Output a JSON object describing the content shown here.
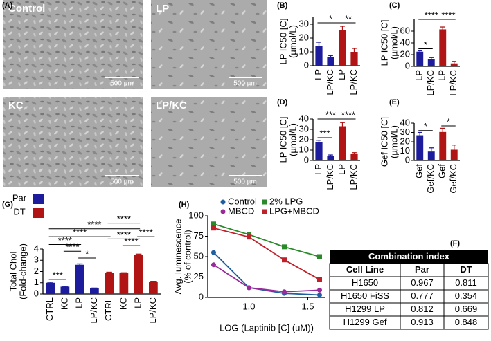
{
  "panel_labels": [
    "(A)",
    "(B)",
    "(C)",
    "(D)",
    "(E)",
    "(G)",
    "(H)",
    "(F)"
  ],
  "micrographs": [
    {
      "label": "Control",
      "scale": "500 µm"
    },
    {
      "label": "LP",
      "scale": "500 µm"
    },
    {
      "label": "KC",
      "scale": "500 µm"
    },
    {
      "label": "LP/KC",
      "scale": "500 µm"
    }
  ],
  "chart_data": [
    {
      "type": "bar",
      "ylabel": [
        "LP IC50 [C]",
        "(µmol/L)"
      ],
      "categories": [
        "LP",
        "LP/KC",
        "LP",
        "LP/KC"
      ],
      "values": [
        14,
        6,
        25.5,
        10
      ],
      "errors": [
        3,
        1.3,
        3,
        2.5
      ],
      "colors": [
        "#1c1c9c",
        "#1c1c9c",
        "#b01414",
        "#b01414"
      ],
      "ylim": [
        0,
        35
      ],
      "yticks": [
        0,
        10,
        20,
        30
      ],
      "annotations": [
        {
          "text": "*",
          "from": 0,
          "to": 2,
          "y": 31
        },
        {
          "text": "**",
          "from": 2,
          "to": 3,
          "y": 31
        }
      ]
    },
    {
      "type": "bar",
      "ylabel": [
        "LP IC50 [C]",
        "(µmol/L)"
      ],
      "categories": [
        "LP",
        "LP/KC",
        "LP",
        "LP/KC"
      ],
      "values": [
        25,
        12,
        63,
        5
      ],
      "errors": [
        1.5,
        3,
        4,
        3.5
      ],
      "colors": [
        "#1c1c9c",
        "#1c1c9c",
        "#b01414",
        "#b01414"
      ],
      "ylim": [
        0,
        80
      ],
      "yticks": [
        0,
        20,
        40,
        60
      ],
      "annotations": [
        {
          "text": "*",
          "from": 0,
          "to": 1,
          "y": 30
        },
        {
          "text": "****",
          "from": 0,
          "to": 2,
          "y": 80
        },
        {
          "text": "****",
          "from": 2,
          "to": 3,
          "y": 80
        }
      ]
    },
    {
      "type": "bar",
      "ylabel": [
        "LP IC50 [C]",
        "(µmol/L)"
      ],
      "categories": [
        "LP",
        "LP/KC",
        "LP",
        "LP/KC"
      ],
      "values": [
        18,
        4.5,
        33,
        6
      ],
      "errors": [
        1.5,
        0.8,
        3.5,
        1.5
      ],
      "colors": [
        "#1c1c9c",
        "#1c1c9c",
        "#b01414",
        "#b01414"
      ],
      "ylim": [
        0,
        40
      ],
      "yticks": [
        0,
        10,
        20,
        30,
        40
      ],
      "annotations": [
        {
          "text": "***",
          "from": 0,
          "to": 1,
          "y": 22
        },
        {
          "text": "***",
          "from": 0,
          "to": 2,
          "y": 40
        },
        {
          "text": "****",
          "from": 2,
          "to": 3,
          "y": 40
        }
      ]
    },
    {
      "type": "bar",
      "ylabel": [
        "Gef IC50 [C]",
        "(µmol/L)"
      ],
      "categories": [
        "Gef",
        "Gef/KC",
        "Gef",
        "Gef/KC"
      ],
      "values": [
        27,
        9.5,
        30.5,
        11.5
      ],
      "errors": [
        3,
        4,
        4,
        5
      ],
      "colors": [
        "#1c1c9c",
        "#1c1c9c",
        "#b01414",
        "#b01414"
      ],
      "ylim": [
        0,
        40
      ],
      "yticks": [
        0,
        10,
        20,
        30,
        40
      ],
      "annotations": [
        {
          "text": "*",
          "from": 0,
          "to": 1,
          "y": 32
        },
        {
          "text": "*",
          "from": 2,
          "to": 3,
          "y": 37
        }
      ]
    },
    {
      "type": "bar",
      "ylabel": [
        "Total Chol",
        "(Fold-change)"
      ],
      "categories": [
        "CTRL",
        "KC",
        "LP",
        "LP/KC",
        "CTRL",
        "KC",
        "LP",
        "LP/KC"
      ],
      "values": [
        1.0,
        0.65,
        2.6,
        0.5,
        1.9,
        1.85,
        3.5,
        1.1
      ],
      "errors": [
        0.05,
        0.04,
        0.08,
        0.03,
        0.04,
        0.04,
        0.05,
        0.03
      ],
      "colors": [
        "#1c1c9c",
        "#1c1c9c",
        "#1c1c9c",
        "#1c1c9c",
        "#b01414",
        "#b01414",
        "#b01414",
        "#b01414"
      ],
      "legend": [
        {
          "name": "Par",
          "color": "#1c1c9c"
        },
        {
          "name": "DT",
          "color": "#b01414"
        }
      ],
      "ylim": [
        0,
        4
      ],
      "yticks": [
        0,
        1,
        2,
        3,
        4
      ],
      "annotations": [
        {
          "text": "***",
          "from": 0,
          "to": 1,
          "y": 1.3
        },
        {
          "text": "*",
          "from": 2,
          "to": 3,
          "y": 3.2
        },
        {
          "text": "****",
          "from": 1,
          "to": 2,
          "y": 3.8
        },
        {
          "text": "****",
          "from": 0,
          "to": 2,
          "y": 4.4
        },
        {
          "text": "****",
          "from": 0,
          "to": 4,
          "y": 5.1
        },
        {
          "text": "****",
          "from": 0,
          "to": 6,
          "y": 5.8
        },
        {
          "text": "****",
          "from": 5,
          "to": 6,
          "y": 4.3
        },
        {
          "text": "****",
          "from": 4,
          "to": 6,
          "y": 4.9
        },
        {
          "text": "****",
          "from": 6,
          "to": 7,
          "y": 5.1
        },
        {
          "text": "****",
          "from": 4,
          "to": 6,
          "y": 6.3
        }
      ]
    },
    {
      "type": "line",
      "ylabel": [
        "Avg. luminescence",
        "(% of control)"
      ],
      "xlabel": "LOG (Laptinib [C] (uM))",
      "x": [
        0.7,
        1.0,
        1.3,
        1.6
      ],
      "series": [
        {
          "name": "Control",
          "color": "#1f5fa0",
          "marker": "circle",
          "values": [
            55,
            12,
            5,
            3
          ]
        },
        {
          "name": "2% LPG",
          "color": "#2a8a2a",
          "marker": "square",
          "values": [
            90,
            77,
            62,
            50
          ]
        },
        {
          "name": "MBCD",
          "color": "#9a2a9a",
          "marker": "circle",
          "values": [
            40,
            12,
            7,
            9
          ]
        },
        {
          "name": "LPG+MBCD",
          "color": "#c0202a",
          "marker": "square",
          "values": [
            85,
            74,
            46,
            22
          ]
        }
      ],
      "xlim": [
        0.65,
        1.65
      ],
      "xticks": [
        {
          "value": 1,
          "label": "1.0"
        },
        {
          "value": 1.5,
          "label": "1.5"
        }
      ],
      "ylim": [
        0,
        100
      ],
      "yticks": [
        0,
        25,
        50,
        75,
        100
      ]
    }
  ],
  "table": {
    "title": "Combination index",
    "header": [
      "Cell Line",
      "Par",
      "DT"
    ],
    "rows": [
      [
        "H1650",
        "0.967",
        "0.811"
      ],
      [
        "H1650 FiSS",
        "0.777",
        "0.354"
      ],
      [
        "H1299 LP",
        "0.812",
        "0.669"
      ],
      [
        "H1299 Gef",
        "0.913",
        "0.848"
      ]
    ]
  }
}
